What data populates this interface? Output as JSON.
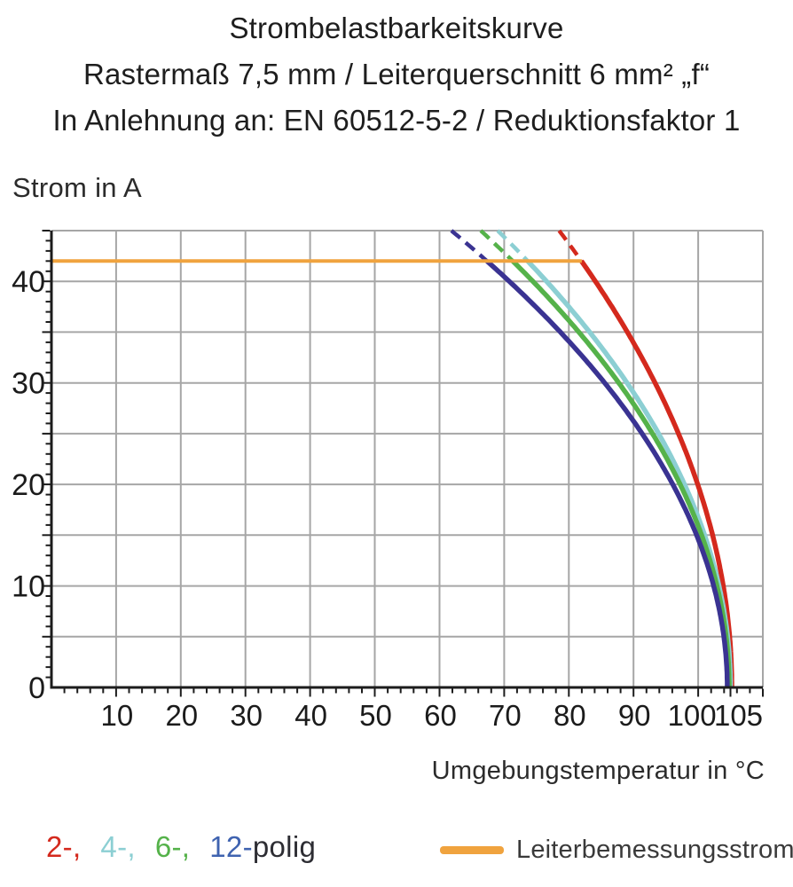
{
  "chart_data": {
    "type": "line",
    "title": "Strombelastbarkeitskurve",
    "subtitle": "Rastermaß 7,5 mm / Leiterquerschnitt 6 mm² „f“",
    "subtitle2": "In Anlehnung an: EN 60512-5-2 / Reduktionsfaktor 1",
    "ylabel": "Strom in A",
    "xlabel": "Umgebungstemperatur in °C",
    "xlim": [
      0,
      110
    ],
    "ylim": [
      0,
      45
    ],
    "x_ticks": [
      10,
      20,
      30,
      40,
      50,
      60,
      70,
      80,
      90,
      100,
      105
    ],
    "y_ticks": [
      0,
      10,
      20,
      30,
      40
    ],
    "x_grid_step": 10,
    "y_grid_step": 5,
    "x_minor_tick_step": 2,
    "y_minor_tick_step": 1,
    "grid": true,
    "grid_color": "#a6a6a6",
    "axis_color": "#1c1c1c",
    "clip_top_a": 45,
    "dash_above_a": 42,
    "rated_current": {
      "label": "Leiterbemessungsstrom",
      "value_a": 42,
      "t_start": 0,
      "t_end": 82,
      "color": "#f0a33e"
    },
    "series": [
      {
        "name": "2-polig",
        "poles": 2,
        "color": "#d4291d",
        "model": {
          "k": 8.71,
          "t_max": 105.2
        },
        "points": [
          [
            78.5,
            45
          ],
          [
            80,
            43.7
          ],
          [
            85,
            39.1
          ],
          [
            90,
            33.9
          ],
          [
            95,
            27.8
          ],
          [
            100,
            19.9
          ],
          [
            103,
            12.9
          ],
          [
            105.2,
            0
          ]
        ]
      },
      {
        "name": "4-polig",
        "poles": 4,
        "color": "#8ccfd3",
        "model": {
          "k": 7.5,
          "t_max": 105.0
        },
        "points": [
          [
            69,
            45
          ],
          [
            75,
            41.1
          ],
          [
            80,
            37.5
          ],
          [
            85,
            33.5
          ],
          [
            90,
            29.0
          ],
          [
            95,
            23.7
          ],
          [
            100,
            16.8
          ],
          [
            105,
            0
          ]
        ]
      },
      {
        "name": "6-polig",
        "poles": 6,
        "color": "#55b24a",
        "model": {
          "k": 7.26,
          "t_max": 104.8
        },
        "points": [
          [
            66.4,
            45
          ],
          [
            70,
            42.8
          ],
          [
            75,
            39.6
          ],
          [
            80,
            36.2
          ],
          [
            85,
            32.3
          ],
          [
            90,
            27.9
          ],
          [
            95,
            22.7
          ],
          [
            100,
            15.9
          ],
          [
            104.8,
            0
          ]
        ]
      },
      {
        "name": "12-polig",
        "poles": 12,
        "color": "#3a3392",
        "model": {
          "k": 6.89,
          "t_max": 104.5
        },
        "points": [
          [
            61.9,
            45
          ],
          [
            65,
            43.3
          ],
          [
            70,
            40.5
          ],
          [
            75,
            37.4
          ],
          [
            80,
            34.1
          ],
          [
            85,
            30.4
          ],
          [
            90,
            26.2
          ],
          [
            95,
            21.2
          ],
          [
            100,
            14.6
          ],
          [
            104.5,
            0
          ]
        ]
      }
    ]
  },
  "legend": {
    "pole_items": [
      {
        "text": "2-,",
        "color": "#d4291d"
      },
      {
        "text": "4-,",
        "color": "#8ccfd3"
      },
      {
        "text": "6-,",
        "color": "#55b24a"
      },
      {
        "text": "12-",
        "color": "#3f63b0"
      }
    ],
    "pole_suffix": "polig"
  }
}
